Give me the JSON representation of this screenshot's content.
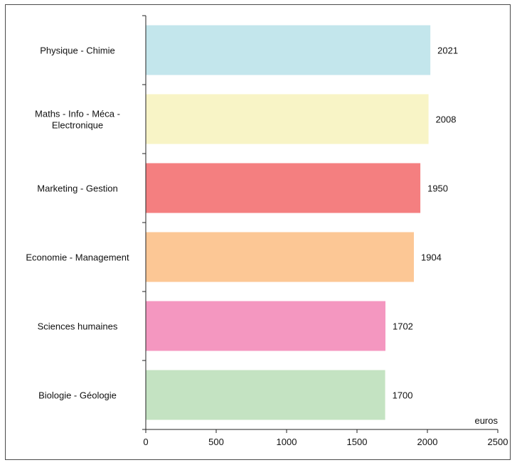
{
  "chart_data": {
    "type": "bar",
    "orientation": "horizontal",
    "title": "",
    "xlabel": "euros",
    "ylabel": "",
    "xlim": [
      0,
      2500
    ],
    "x_ticks": [
      "0",
      "500",
      "1000",
      "1500",
      "2000",
      "2500"
    ],
    "grid": false,
    "legend": "none",
    "categories": [
      {
        "lines": [
          "Physique - Chimie"
        ]
      },
      {
        "lines": [
          "Maths - Info - Méca -",
          "Electronique"
        ]
      },
      {
        "lines": [
          "Marketing - Gestion"
        ]
      },
      {
        "lines": [
          "Economie - Management"
        ]
      },
      {
        "lines": [
          "Sciences humaines"
        ]
      },
      {
        "lines": [
          "Biologie - Géologie"
        ]
      }
    ],
    "values": [
      2021,
      2008,
      1950,
      1904,
      1702,
      1700
    ],
    "value_labels": [
      "2021",
      "2008",
      "1950",
      "1904",
      "1702",
      "1700"
    ],
    "colors": [
      "#c3e6ec",
      "#f8f4c6",
      "#f47f80",
      "#fcc795",
      "#f497c0",
      "#c4e3c2"
    ]
  }
}
